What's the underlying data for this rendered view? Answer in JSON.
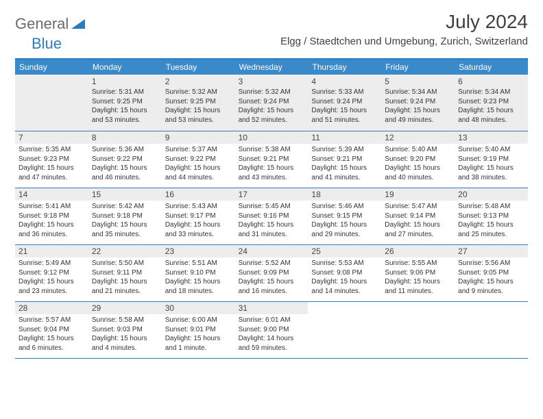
{
  "logo": {
    "text1": "General",
    "text2": "Blue",
    "color1": "#6a6a6a",
    "color2": "#2a7bbf"
  },
  "title": "July 2024",
  "location": "Elgg / Staedtchen und Umgebung, Zurich, Switzerland",
  "colors": {
    "header_bg": "#3a89c9",
    "border": "#2a7bbf",
    "shade": "#ededed"
  },
  "day_names": [
    "Sunday",
    "Monday",
    "Tuesday",
    "Wednesday",
    "Thursday",
    "Friday",
    "Saturday"
  ],
  "weeks": [
    [
      {
        "num": "",
        "sunrise": "",
        "sunset": "",
        "daylight": ""
      },
      {
        "num": "1",
        "sunrise": "Sunrise: 5:31 AM",
        "sunset": "Sunset: 9:25 PM",
        "daylight": "Daylight: 15 hours and 53 minutes."
      },
      {
        "num": "2",
        "sunrise": "Sunrise: 5:32 AM",
        "sunset": "Sunset: 9:25 PM",
        "daylight": "Daylight: 15 hours and 53 minutes."
      },
      {
        "num": "3",
        "sunrise": "Sunrise: 5:32 AM",
        "sunset": "Sunset: 9:24 PM",
        "daylight": "Daylight: 15 hours and 52 minutes."
      },
      {
        "num": "4",
        "sunrise": "Sunrise: 5:33 AM",
        "sunset": "Sunset: 9:24 PM",
        "daylight": "Daylight: 15 hours and 51 minutes."
      },
      {
        "num": "5",
        "sunrise": "Sunrise: 5:34 AM",
        "sunset": "Sunset: 9:24 PM",
        "daylight": "Daylight: 15 hours and 49 minutes."
      },
      {
        "num": "6",
        "sunrise": "Sunrise: 5:34 AM",
        "sunset": "Sunset: 9:23 PM",
        "daylight": "Daylight: 15 hours and 48 minutes."
      }
    ],
    [
      {
        "num": "7",
        "sunrise": "Sunrise: 5:35 AM",
        "sunset": "Sunset: 9:23 PM",
        "daylight": "Daylight: 15 hours and 47 minutes."
      },
      {
        "num": "8",
        "sunrise": "Sunrise: 5:36 AM",
        "sunset": "Sunset: 9:22 PM",
        "daylight": "Daylight: 15 hours and 46 minutes."
      },
      {
        "num": "9",
        "sunrise": "Sunrise: 5:37 AM",
        "sunset": "Sunset: 9:22 PM",
        "daylight": "Daylight: 15 hours and 44 minutes."
      },
      {
        "num": "10",
        "sunrise": "Sunrise: 5:38 AM",
        "sunset": "Sunset: 9:21 PM",
        "daylight": "Daylight: 15 hours and 43 minutes."
      },
      {
        "num": "11",
        "sunrise": "Sunrise: 5:39 AM",
        "sunset": "Sunset: 9:21 PM",
        "daylight": "Daylight: 15 hours and 41 minutes."
      },
      {
        "num": "12",
        "sunrise": "Sunrise: 5:40 AM",
        "sunset": "Sunset: 9:20 PM",
        "daylight": "Daylight: 15 hours and 40 minutes."
      },
      {
        "num": "13",
        "sunrise": "Sunrise: 5:40 AM",
        "sunset": "Sunset: 9:19 PM",
        "daylight": "Daylight: 15 hours and 38 minutes."
      }
    ],
    [
      {
        "num": "14",
        "sunrise": "Sunrise: 5:41 AM",
        "sunset": "Sunset: 9:18 PM",
        "daylight": "Daylight: 15 hours and 36 minutes."
      },
      {
        "num": "15",
        "sunrise": "Sunrise: 5:42 AM",
        "sunset": "Sunset: 9:18 PM",
        "daylight": "Daylight: 15 hours and 35 minutes."
      },
      {
        "num": "16",
        "sunrise": "Sunrise: 5:43 AM",
        "sunset": "Sunset: 9:17 PM",
        "daylight": "Daylight: 15 hours and 33 minutes."
      },
      {
        "num": "17",
        "sunrise": "Sunrise: 5:45 AM",
        "sunset": "Sunset: 9:16 PM",
        "daylight": "Daylight: 15 hours and 31 minutes."
      },
      {
        "num": "18",
        "sunrise": "Sunrise: 5:46 AM",
        "sunset": "Sunset: 9:15 PM",
        "daylight": "Daylight: 15 hours and 29 minutes."
      },
      {
        "num": "19",
        "sunrise": "Sunrise: 5:47 AM",
        "sunset": "Sunset: 9:14 PM",
        "daylight": "Daylight: 15 hours and 27 minutes."
      },
      {
        "num": "20",
        "sunrise": "Sunrise: 5:48 AM",
        "sunset": "Sunset: 9:13 PM",
        "daylight": "Daylight: 15 hours and 25 minutes."
      }
    ],
    [
      {
        "num": "21",
        "sunrise": "Sunrise: 5:49 AM",
        "sunset": "Sunset: 9:12 PM",
        "daylight": "Daylight: 15 hours and 23 minutes."
      },
      {
        "num": "22",
        "sunrise": "Sunrise: 5:50 AM",
        "sunset": "Sunset: 9:11 PM",
        "daylight": "Daylight: 15 hours and 21 minutes."
      },
      {
        "num": "23",
        "sunrise": "Sunrise: 5:51 AM",
        "sunset": "Sunset: 9:10 PM",
        "daylight": "Daylight: 15 hours and 18 minutes."
      },
      {
        "num": "24",
        "sunrise": "Sunrise: 5:52 AM",
        "sunset": "Sunset: 9:09 PM",
        "daylight": "Daylight: 15 hours and 16 minutes."
      },
      {
        "num": "25",
        "sunrise": "Sunrise: 5:53 AM",
        "sunset": "Sunset: 9:08 PM",
        "daylight": "Daylight: 15 hours and 14 minutes."
      },
      {
        "num": "26",
        "sunrise": "Sunrise: 5:55 AM",
        "sunset": "Sunset: 9:06 PM",
        "daylight": "Daylight: 15 hours and 11 minutes."
      },
      {
        "num": "27",
        "sunrise": "Sunrise: 5:56 AM",
        "sunset": "Sunset: 9:05 PM",
        "daylight": "Daylight: 15 hours and 9 minutes."
      }
    ],
    [
      {
        "num": "28",
        "sunrise": "Sunrise: 5:57 AM",
        "sunset": "Sunset: 9:04 PM",
        "daylight": "Daylight: 15 hours and 6 minutes."
      },
      {
        "num": "29",
        "sunrise": "Sunrise: 5:58 AM",
        "sunset": "Sunset: 9:03 PM",
        "daylight": "Daylight: 15 hours and 4 minutes."
      },
      {
        "num": "30",
        "sunrise": "Sunrise: 6:00 AM",
        "sunset": "Sunset: 9:01 PM",
        "daylight": "Daylight: 15 hours and 1 minute."
      },
      {
        "num": "31",
        "sunrise": "Sunrise: 6:01 AM",
        "sunset": "Sunset: 9:00 PM",
        "daylight": "Daylight: 14 hours and 59 minutes."
      },
      {
        "num": "",
        "sunrise": "",
        "sunset": "",
        "daylight": ""
      },
      {
        "num": "",
        "sunrise": "",
        "sunset": "",
        "daylight": ""
      },
      {
        "num": "",
        "sunrise": "",
        "sunset": "",
        "daylight": ""
      }
    ]
  ]
}
